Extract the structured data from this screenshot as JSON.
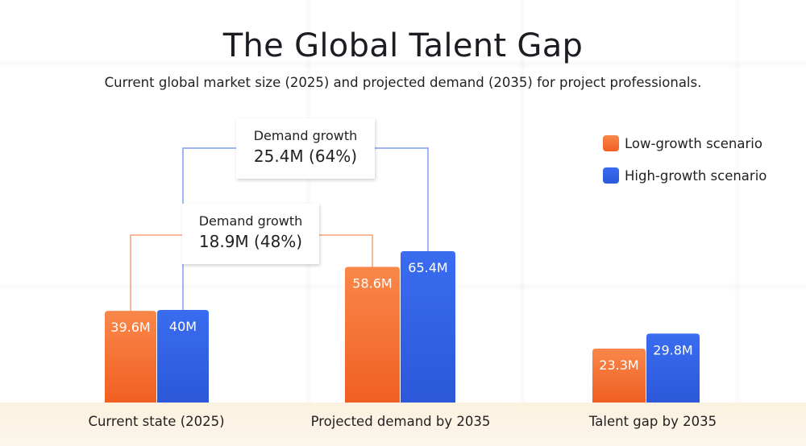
{
  "title": "The Global Talent Gap",
  "subtitle": "Current global market size (2025) and projected demand (2035) for project professionals.",
  "colors": {
    "low": "#f26a2e",
    "high": "#3264e6",
    "low_connector": "#f5a07a",
    "high_connector": "#7d9df0",
    "footer": "#fbf3e4"
  },
  "legend": [
    {
      "label": "Low-growth scenario",
      "color": "#f26a2e"
    },
    {
      "label": "High-growth scenario",
      "color": "#3264e6"
    }
  ],
  "callouts": [
    {
      "label": "Demand growth",
      "value": "25.4M (64%)",
      "series": "High-growth scenario"
    },
    {
      "label": "Demand growth",
      "value": "18.9M (48%)",
      "series": "Low-growth scenario"
    }
  ],
  "chart_data": {
    "type": "bar",
    "title": "The Global Talent Gap",
    "subtitle": "Current global market size (2025) and projected demand (2035) for project professionals.",
    "xlabel": "",
    "ylabel": "",
    "unit": "M",
    "categories": [
      "Current state (2025)",
      "Projected demand by 2035",
      "Talent gap by 2035"
    ],
    "series": [
      {
        "name": "Low-growth scenario",
        "values": [
          39.6,
          58.6,
          23.3
        ],
        "labels": [
          "39.6M",
          "58.6M",
          "23.3M"
        ]
      },
      {
        "name": "High-growth scenario",
        "values": [
          40,
          65.4,
          29.8
        ],
        "labels": [
          "40M",
          "65.4M",
          "29.8M"
        ]
      }
    ],
    "ylim": [
      0,
      70
    ],
    "grid": false,
    "legend": "top-right",
    "annotations": [
      {
        "text": "Demand growth 25.4M (64%)",
        "from": "Current state (2025)",
        "to": "Projected demand by 2035",
        "series": "High-growth scenario"
      },
      {
        "text": "Demand growth 18.9M (48%)",
        "from": "Current state (2025)",
        "to": "Projected demand by 2035",
        "series": "Low-growth scenario"
      }
    ]
  }
}
